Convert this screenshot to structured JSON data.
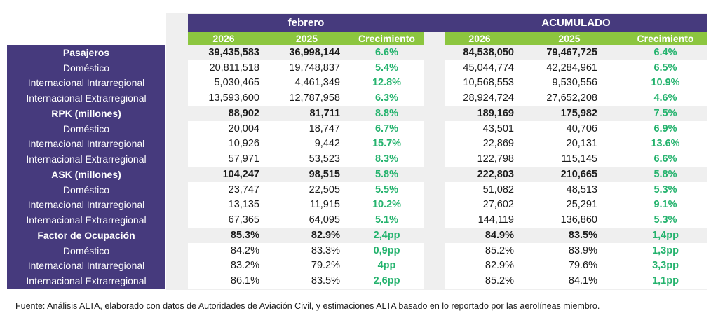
{
  "header": {
    "febrero": "febrero",
    "acumulado": "ACUMULADO",
    "col_2026": "2026",
    "col_2025": "2025",
    "col_crecimiento": "Crecimiento"
  },
  "colors": {
    "purple": "#463a7d",
    "green_header": "#8cc63f",
    "growth_text": "#25b36e",
    "band_gray": "#efefef"
  },
  "rows": [
    {
      "label": "Pasajeros",
      "bold": true,
      "feb_2026": "39,435,583",
      "feb_2025": "36,998,144",
      "feb_crec": "6.6%",
      "acum_2026": "84,538,050",
      "acum_2025": "79,467,725",
      "acum_crec": "6.4%"
    },
    {
      "label": "Doméstico",
      "bold": false,
      "feb_2026": "20,811,518",
      "feb_2025": "19,748,837",
      "feb_crec": "5.4%",
      "acum_2026": "45,044,774",
      "acum_2025": "42,284,961",
      "acum_crec": "6.5%"
    },
    {
      "label": "Internacional Intrarregional",
      "bold": false,
      "feb_2026": "5,030,465",
      "feb_2025": "4,461,349",
      "feb_crec": "12.8%",
      "acum_2026": "10,568,553",
      "acum_2025": "9,530,556",
      "acum_crec": "10.9%"
    },
    {
      "label": "Internacional Extrarregional",
      "bold": false,
      "feb_2026": "13,593,600",
      "feb_2025": "12,787,958",
      "feb_crec": "6.3%",
      "acum_2026": "28,924,724",
      "acum_2025": "27,652,208",
      "acum_crec": "4.6%"
    },
    {
      "label": "RPK (millones)",
      "bold": true,
      "feb_2026": "88,902",
      "feb_2025": "81,711",
      "feb_crec": "8.8%",
      "acum_2026": "189,169",
      "acum_2025": "175,982",
      "acum_crec": "7.5%"
    },
    {
      "label": "Doméstico",
      "bold": false,
      "feb_2026": "20,004",
      "feb_2025": "18,747",
      "feb_crec": "6.7%",
      "acum_2026": "43,501",
      "acum_2025": "40,706",
      "acum_crec": "6.9%"
    },
    {
      "label": "Internacional Intrarregional",
      "bold": false,
      "feb_2026": "10,926",
      "feb_2025": "9,442",
      "feb_crec": "15.7%",
      "acum_2026": "22,869",
      "acum_2025": "20,131",
      "acum_crec": "13.6%"
    },
    {
      "label": "Internacional Extrarregional",
      "bold": false,
      "feb_2026": "57,971",
      "feb_2025": "53,523",
      "feb_crec": "8.3%",
      "acum_2026": "122,798",
      "acum_2025": "115,145",
      "acum_crec": "6.6%"
    },
    {
      "label": "ASK (millones)",
      "bold": true,
      "feb_2026": "104,247",
      "feb_2025": "98,515",
      "feb_crec": "5.8%",
      "acum_2026": "222,803",
      "acum_2025": "210,665",
      "acum_crec": "5.8%"
    },
    {
      "label": "Doméstico",
      "bold": false,
      "feb_2026": "23,747",
      "feb_2025": "22,505",
      "feb_crec": "5.5%",
      "acum_2026": "51,082",
      "acum_2025": "48,513",
      "acum_crec": "5.3%"
    },
    {
      "label": "Internacional Intrarregional",
      "bold": false,
      "feb_2026": "13,135",
      "feb_2025": "11,915",
      "feb_crec": "10.2%",
      "acum_2026": "27,602",
      "acum_2025": "25,291",
      "acum_crec": "9.1%"
    },
    {
      "label": "Internacional Extrarregional",
      "bold": false,
      "feb_2026": "67,365",
      "feb_2025": "64,095",
      "feb_crec": "5.1%",
      "acum_2026": "144,119",
      "acum_2025": "136,860",
      "acum_crec": "5.3%"
    },
    {
      "label": "Factor de Ocupación",
      "bold": true,
      "feb_2026": "85.3%",
      "feb_2025": "82.9%",
      "feb_crec": "2,4pp",
      "acum_2026": "84.9%",
      "acum_2025": "83.5%",
      "acum_crec": "1,4pp"
    },
    {
      "label": "Doméstico",
      "bold": false,
      "feb_2026": "84.2%",
      "feb_2025": "83.3%",
      "feb_crec": "0,9pp",
      "acum_2026": "85.2%",
      "acum_2025": "83.9%",
      "acum_crec": "1,3pp"
    },
    {
      "label": "Internacional Intrarregional",
      "bold": false,
      "feb_2026": "83.2%",
      "feb_2025": "79.2%",
      "feb_crec": "4pp",
      "acum_2026": "82.9%",
      "acum_2025": "79.6%",
      "acum_crec": "3,3pp"
    },
    {
      "label": "Internacional Extrarregional",
      "bold": false,
      "feb_2026": "86.1%",
      "feb_2025": "83.5%",
      "feb_crec": "2,6pp",
      "acum_2026": "85.2%",
      "acum_2025": "84.1%",
      "acum_crec": "1,1pp"
    }
  ],
  "footer": {
    "source": "Fuente: Análisis ALTA, elaborado con datos de Autoridades de Aviación Civil,  y estimaciones ALTA basado en lo reportado por las aerolíneas miembro."
  }
}
